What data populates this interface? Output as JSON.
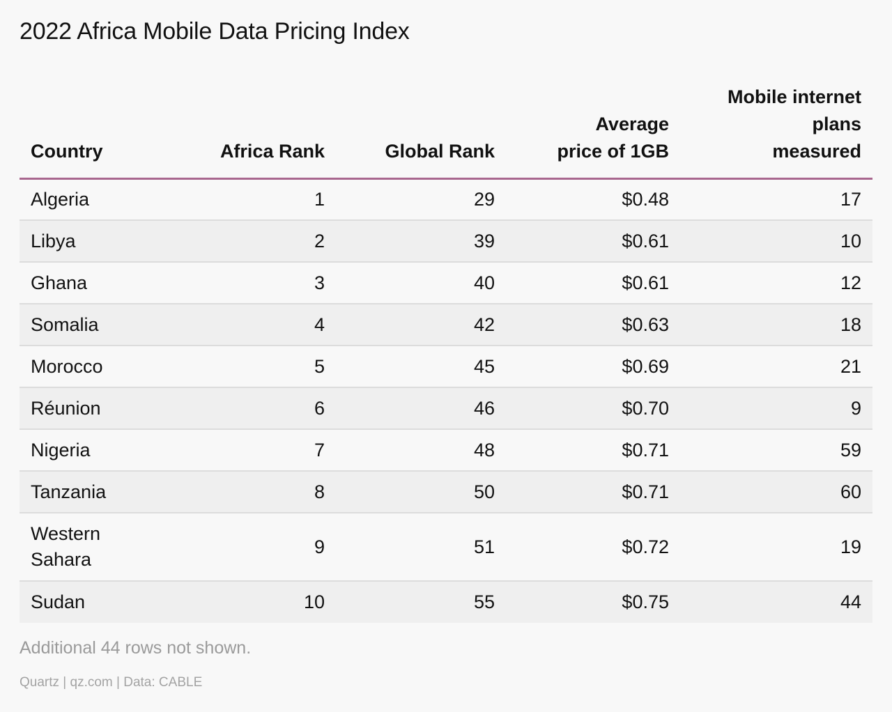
{
  "title": "2022 Africa Mobile Data Pricing Index",
  "chart_data": {
    "type": "table",
    "title": "2022 Africa Mobile Data Pricing Index",
    "columns": [
      "Country",
      "Africa Rank",
      "Global Rank",
      "Average price of 1GB",
      "Mobile internet plans measured"
    ],
    "rows": [
      [
        "Algeria",
        "1",
        "29",
        "$0.48",
        "17"
      ],
      [
        "Libya",
        "2",
        "39",
        "$0.61",
        "10"
      ],
      [
        "Ghana",
        "3",
        "40",
        "$0.61",
        "12"
      ],
      [
        "Somalia",
        "4",
        "42",
        "$0.63",
        "18"
      ],
      [
        "Morocco",
        "5",
        "45",
        "$0.69",
        "21"
      ],
      [
        "Réunion",
        "6",
        "46",
        "$0.70",
        "9"
      ],
      [
        "Nigeria",
        "7",
        "48",
        "$0.71",
        "59"
      ],
      [
        "Tanzania",
        "8",
        "50",
        "$0.71",
        "60"
      ],
      [
        "Western Sahara",
        "9",
        "51",
        "$0.72",
        "19"
      ],
      [
        "Sudan",
        "10",
        "55",
        "$0.75",
        "44"
      ]
    ]
  },
  "footnote": "Additional 44 rows not shown.",
  "source": "Quartz | qz.com | Data: CABLE",
  "colors": {
    "header_rule": "#a8668e",
    "row_alt": "#efefef",
    "background": "#f8f8f8",
    "muted_text": "#9a9a9a"
  }
}
